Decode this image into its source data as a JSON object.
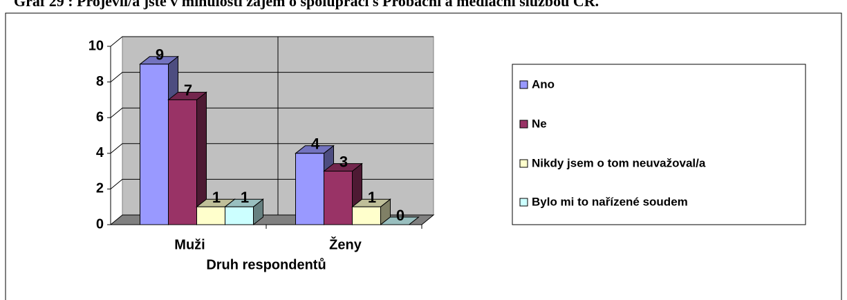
{
  "chart_data": {
    "type": "bar3d",
    "title": "Graf 29 : Projevil/a jste v minulosti zájem o spolupráci s Probační a mediační službou ČR.",
    "x_label": "Druh respondentů",
    "categories": [
      "Muži",
      "Ženy"
    ],
    "series": [
      {
        "name": "Ano",
        "color": "#9999ff",
        "values": [
          9,
          4
        ]
      },
      {
        "name": "Ne",
        "color": "#993366",
        "values": [
          7,
          3
        ]
      },
      {
        "name": "Nikdy jsem o tom neuvažoval/a",
        "color": "#ffffcc",
        "values": [
          1,
          1
        ]
      },
      {
        "name": "Bylo mi to nařízené soudem",
        "color": "#ccffff",
        "values": [
          1,
          0
        ]
      }
    ],
    "ylim": [
      0,
      10
    ],
    "yticks": [
      0,
      2,
      4,
      6,
      8,
      10
    ],
    "grid": true,
    "legend": "right"
  }
}
